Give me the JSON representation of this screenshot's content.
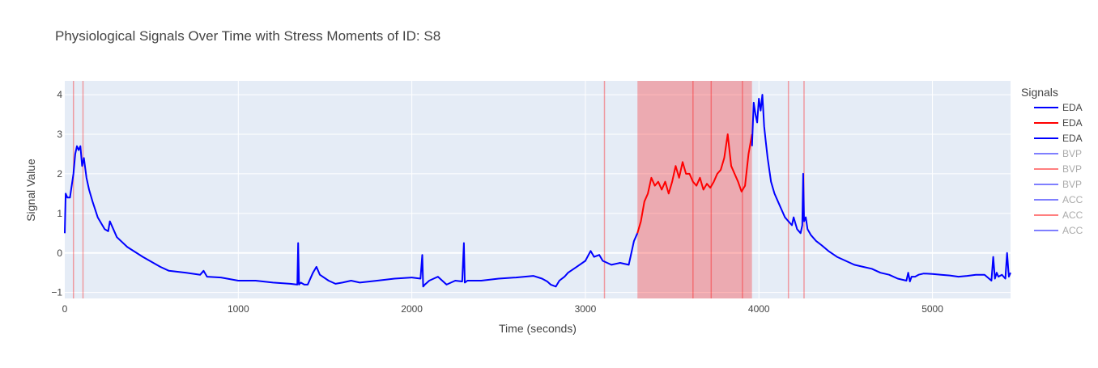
{
  "chart_data": {
    "type": "line",
    "title": "Physiological Signals Over Time with Stress Moments of ID: S8",
    "xlabel": "Time (seconds)",
    "ylabel": "Signal Value",
    "xlim": [
      0,
      5450
    ],
    "ylim": [
      -1.15,
      4.35
    ],
    "x_ticks": [
      0,
      1000,
      2000,
      3000,
      4000,
      5000
    ],
    "y_ticks": [
      -1,
      0,
      1,
      2,
      3,
      4
    ],
    "grid": true,
    "legend": {
      "title": "Signals",
      "placement": "right",
      "items": [
        {
          "label": "EDA",
          "color": "#0000ff",
          "faded": false
        },
        {
          "label": "EDA",
          "color": "#ff0000",
          "faded": false
        },
        {
          "label": "EDA",
          "color": "#0000ff",
          "faded": false
        },
        {
          "label": "BVP",
          "color": "#0000ff",
          "faded": true
        },
        {
          "label": "BVP",
          "color": "#ff0000",
          "faded": true
        },
        {
          "label": "BVP",
          "color": "#0000ff",
          "faded": true
        },
        {
          "label": "ACC",
          "color": "#0000ff",
          "faded": true
        },
        {
          "label": "ACC",
          "color": "#ff0000",
          "faded": true
        },
        {
          "label": "ACC",
          "color": "#0000ff",
          "faded": true
        }
      ]
    },
    "stress_regions": [
      [
        3300,
        3960
      ]
    ],
    "stress_lines": [
      50,
      105,
      3110,
      3620,
      3725,
      3905,
      4170,
      4260
    ],
    "series": [
      {
        "color": "#0000ff",
        "x": [
          0,
          5,
          15,
          30,
          50,
          60,
          70,
          80,
          90,
          100,
          110,
          125,
          140,
          160,
          190,
          230,
          250,
          260,
          300,
          360,
          450,
          550,
          600,
          700,
          780,
          800,
          820,
          900,
          1000,
          1100,
          1200,
          1300,
          1340,
          1345,
          1350,
          1360,
          1380,
          1400,
          1430,
          1450,
          1470,
          1520,
          1560,
          1600,
          1650,
          1700,
          1800,
          1900,
          2000,
          2050,
          2060,
          2065,
          2075,
          2100,
          2150,
          2200,
          2250,
          2290,
          2300,
          2305,
          2320,
          2400,
          2500,
          2600,
          2700,
          2750,
          2780,
          2800,
          2830,
          2850,
          2880,
          2900,
          2950,
          3000,
          3030,
          3050,
          3080,
          3100,
          3150,
          3200,
          3250,
          3280,
          3300
        ],
        "y": [
          0.5,
          1.5,
          1.4,
          1.4,
          2.0,
          2.5,
          2.7,
          2.6,
          2.7,
          2.2,
          2.4,
          1.9,
          1.6,
          1.3,
          0.9,
          0.6,
          0.55,
          0.8,
          0.4,
          0.15,
          -0.1,
          -0.35,
          -0.45,
          -0.5,
          -0.55,
          -0.45,
          -0.6,
          -0.62,
          -0.7,
          -0.7,
          -0.75,
          -0.78,
          -0.8,
          0.25,
          -0.8,
          -0.75,
          -0.8,
          -0.8,
          -0.5,
          -0.35,
          -0.55,
          -0.7,
          -0.78,
          -0.75,
          -0.7,
          -0.75,
          -0.7,
          -0.65,
          -0.62,
          -0.65,
          -0.05,
          -0.85,
          -0.8,
          -0.7,
          -0.6,
          -0.8,
          -0.7,
          -0.72,
          0.25,
          -0.75,
          -0.7,
          -0.7,
          -0.65,
          -0.62,
          -0.58,
          -0.65,
          -0.72,
          -0.8,
          -0.85,
          -0.7,
          -0.6,
          -0.5,
          -0.35,
          -0.2,
          0.05,
          -0.1,
          -0.05,
          -0.2,
          -0.3,
          -0.25,
          -0.3,
          0.3,
          0.5
        ]
      },
      {
        "color": "#ff0000",
        "x": [
          3300,
          3320,
          3340,
          3360,
          3380,
          3400,
          3420,
          3440,
          3460,
          3480,
          3500,
          3520,
          3540,
          3560,
          3580,
          3600,
          3620,
          3640,
          3660,
          3680,
          3700,
          3720,
          3740,
          3760,
          3780,
          3800,
          3820,
          3840,
          3860,
          3880,
          3900,
          3920,
          3940,
          3960
        ],
        "y": [
          0.5,
          0.8,
          1.3,
          1.5,
          1.9,
          1.7,
          1.8,
          1.6,
          1.8,
          1.5,
          1.8,
          2.2,
          1.9,
          2.3,
          2.0,
          2.0,
          1.8,
          1.7,
          1.9,
          1.6,
          1.75,
          1.65,
          1.8,
          2.0,
          2.1,
          2.4,
          3.0,
          2.2,
          2.0,
          1.8,
          1.55,
          1.7,
          2.5,
          3.0
        ]
      },
      {
        "color": "#0000ff",
        "x": [
          3960,
          3970,
          3980,
          3990,
          4000,
          4010,
          4020,
          4030,
          4040,
          4050,
          4070,
          4090,
          4110,
          4130,
          4150,
          4170,
          4190,
          4200,
          4220,
          4240,
          4250,
          4255,
          4260,
          4270,
          4280,
          4300,
          4330,
          4360,
          4400,
          4450,
          4500,
          4550,
          4600,
          4650,
          4700,
          4750,
          4800,
          4850,
          4860,
          4870,
          4880,
          4900,
          4920,
          4950,
          5000,
          5050,
          5100,
          5150,
          5200,
          5250,
          5300,
          5340,
          5350,
          5360,
          5370,
          5380,
          5400,
          5420,
          5430,
          5440,
          5450
        ],
        "y": [
          2.7,
          3.8,
          3.5,
          3.3,
          3.9,
          3.6,
          4.0,
          3.2,
          2.8,
          2.4,
          1.8,
          1.5,
          1.3,
          1.1,
          0.9,
          0.8,
          0.7,
          0.9,
          0.6,
          0.5,
          0.7,
          2.0,
          0.8,
          0.9,
          0.6,
          0.45,
          0.3,
          0.2,
          0.05,
          -0.1,
          -0.2,
          -0.3,
          -0.35,
          -0.4,
          -0.5,
          -0.55,
          -0.65,
          -0.7,
          -0.5,
          -0.72,
          -0.6,
          -0.6,
          -0.55,
          -0.52,
          -0.53,
          -0.55,
          -0.57,
          -0.6,
          -0.58,
          -0.55,
          -0.55,
          -0.7,
          -0.1,
          -0.65,
          -0.5,
          -0.6,
          -0.55,
          -0.65,
          0.0,
          -0.6,
          -0.5
        ]
      }
    ]
  }
}
